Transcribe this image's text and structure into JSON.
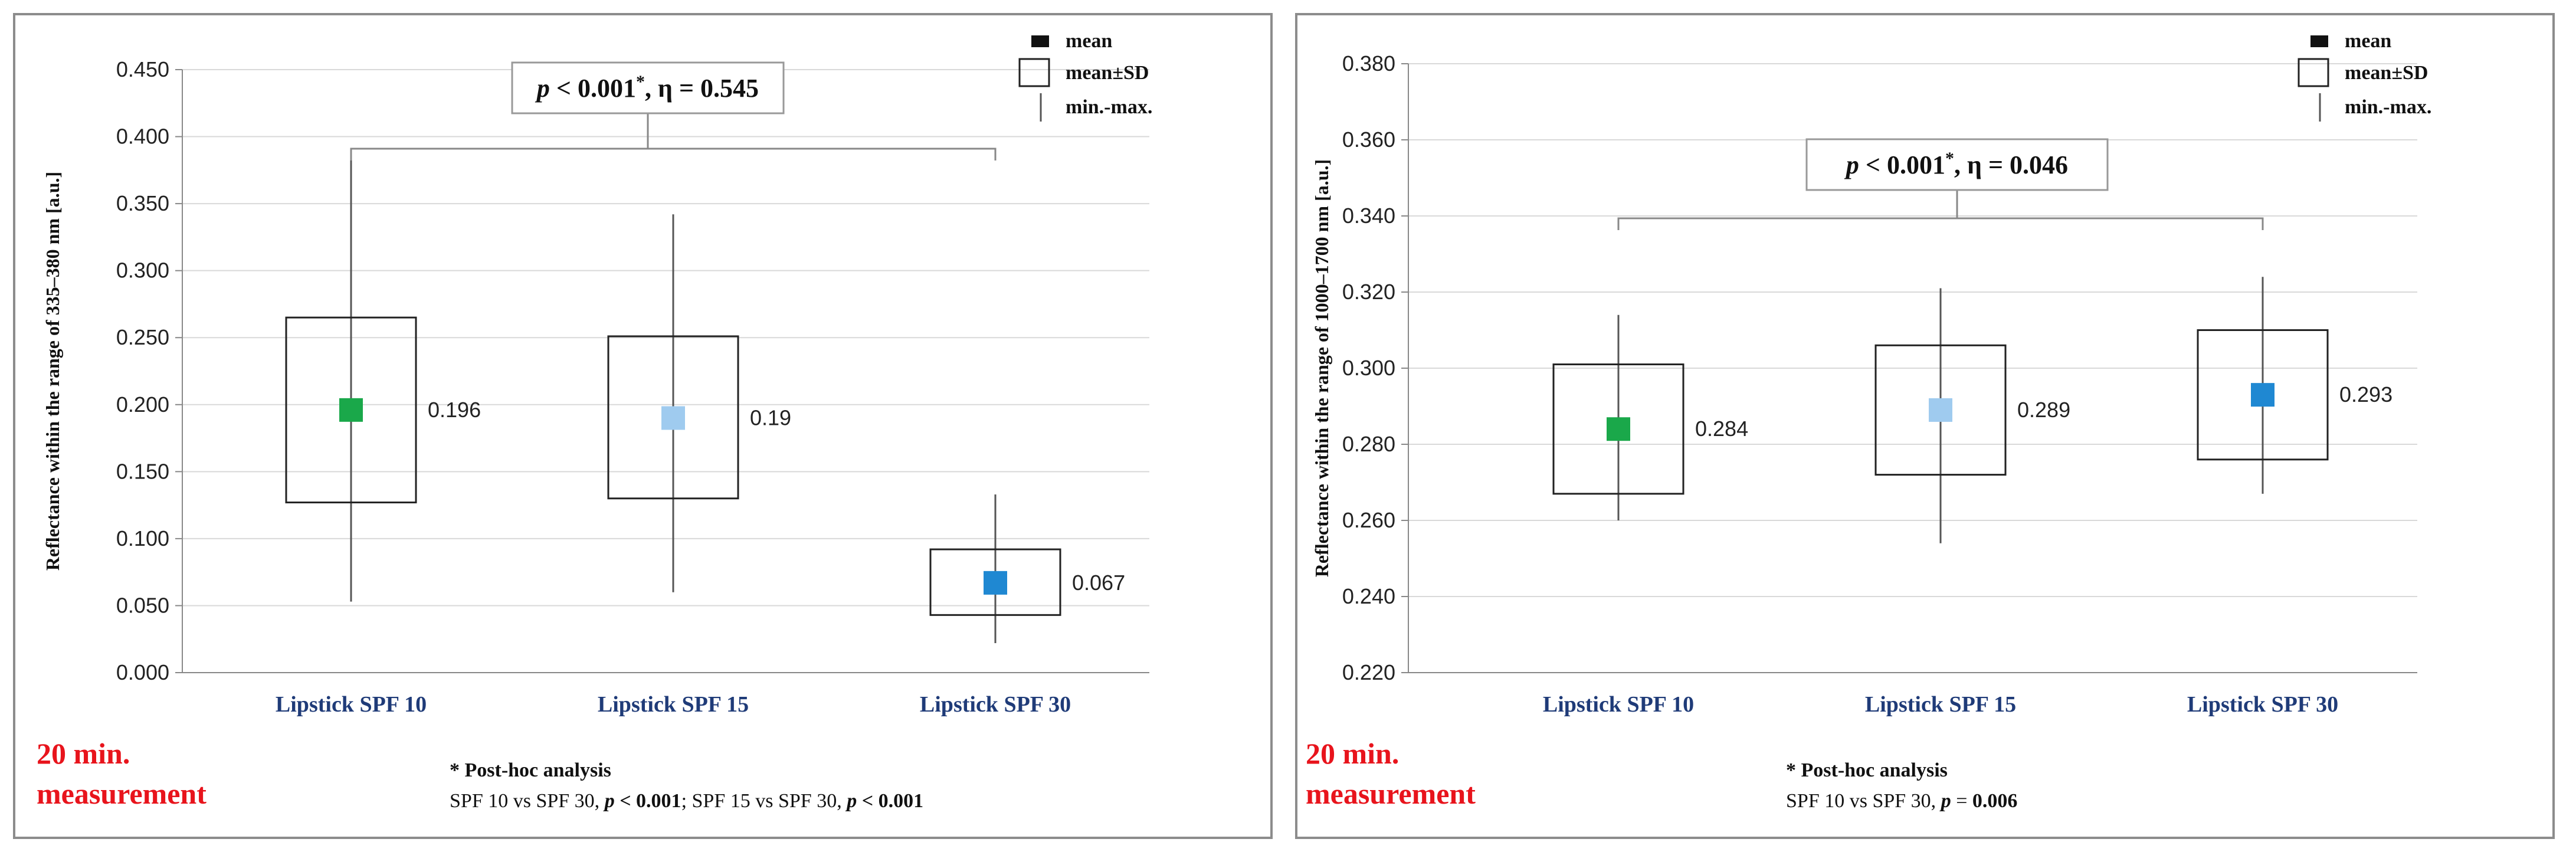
{
  "chart_data": [
    {
      "type": "boxplot",
      "time_label_line1": "20 min.",
      "time_label_line2": "measurement",
      "ylabel": "Reflectance within the range of 335–380 nm [a.u.]",
      "ylim": [
        0.0,
        0.45
      ],
      "ytick_step": 0.05,
      "ytick_labels": [
        "0.000",
        "0.050",
        "0.100",
        "0.150",
        "0.200",
        "0.250",
        "0.300",
        "0.350",
        "0.400",
        "0.450"
      ],
      "categories": [
        "Lipstick SPF 10",
        "Lipstick SPF 15",
        "Lipstick SPF 30"
      ],
      "colors": [
        "#1aa84a",
        "#9fcbef",
        "#1f88d2"
      ],
      "mean": [
        0.196,
        0.19,
        0.067
      ],
      "mean_labels": [
        "0.196",
        "0.19",
        "0.067"
      ],
      "sd_low": [
        0.127,
        0.13,
        0.043
      ],
      "sd_high": [
        0.265,
        0.251,
        0.092
      ],
      "min": [
        0.053,
        0.06,
        0.022
      ],
      "max": [
        0.385,
        0.342,
        0.133
      ],
      "significance": {
        "p_italic": "p",
        "rest": " < 0.001",
        "star": "*",
        "eta": ", η = 0.545",
        "bracket": [
          0,
          2
        ]
      },
      "legend": {
        "mean": "mean",
        "sd": "mean±SD",
        "range": "min.-max."
      },
      "note_title": "* Post-hoc analysis",
      "note_parts": [
        {
          "text": "SPF 10 vs SPF 30, ",
          "bold": false,
          "italic": false
        },
        {
          "text": "p",
          "bold": true,
          "italic": true
        },
        {
          "text": " < 0.001",
          "bold": true,
          "italic": false
        },
        {
          "text": ";   SPF 15 vs SPF 30, ",
          "bold": false,
          "italic": false
        },
        {
          "text": "p",
          "bold": true,
          "italic": true
        },
        {
          "text": " < 0.001",
          "bold": true,
          "italic": false
        }
      ]
    },
    {
      "type": "boxplot",
      "time_label_line1": "20 min.",
      "time_label_line2": "measurement",
      "ylabel": "Reflectance within the range of 1000–1700 nm [a.u.]",
      "ylim": [
        0.22,
        0.38
      ],
      "ytick_step": 0.02,
      "ytick_labels": [
        "0.220",
        "0.240",
        "0.260",
        "0.280",
        "0.300",
        "0.320",
        "0.340",
        "0.360",
        "0.380"
      ],
      "categories": [
        "Lipstick SPF 10",
        "Lipstick SPF 15",
        "Lipstick SPF 30"
      ],
      "colors": [
        "#1aa84a",
        "#9fcbef",
        "#1f88d2"
      ],
      "mean": [
        0.284,
        0.289,
        0.293
      ],
      "mean_labels": [
        "0.284",
        "0.289",
        "0.293"
      ],
      "sd_low": [
        0.267,
        0.272,
        0.276
      ],
      "sd_high": [
        0.301,
        0.306,
        0.31
      ],
      "min": [
        0.26,
        0.254,
        0.267
      ],
      "max": [
        0.314,
        0.321,
        0.324
      ],
      "significance": {
        "p_italic": "p",
        "rest": " < 0.001",
        "star": "*",
        "eta": ", η = 0.046",
        "bracket": [
          0,
          2
        ]
      },
      "legend": {
        "mean": "mean",
        "sd": "mean±SD",
        "range": "min.-max."
      },
      "note_title": "* Post-hoc analysis",
      "note_parts": [
        {
          "text": "SPF 10 vs SPF 30, ",
          "bold": false,
          "italic": false
        },
        {
          "text": "p",
          "bold": true,
          "italic": true
        },
        {
          "text": " = ",
          "bold": false,
          "italic": false
        },
        {
          "text": "0.006",
          "bold": true,
          "italic": false
        }
      ]
    }
  ]
}
